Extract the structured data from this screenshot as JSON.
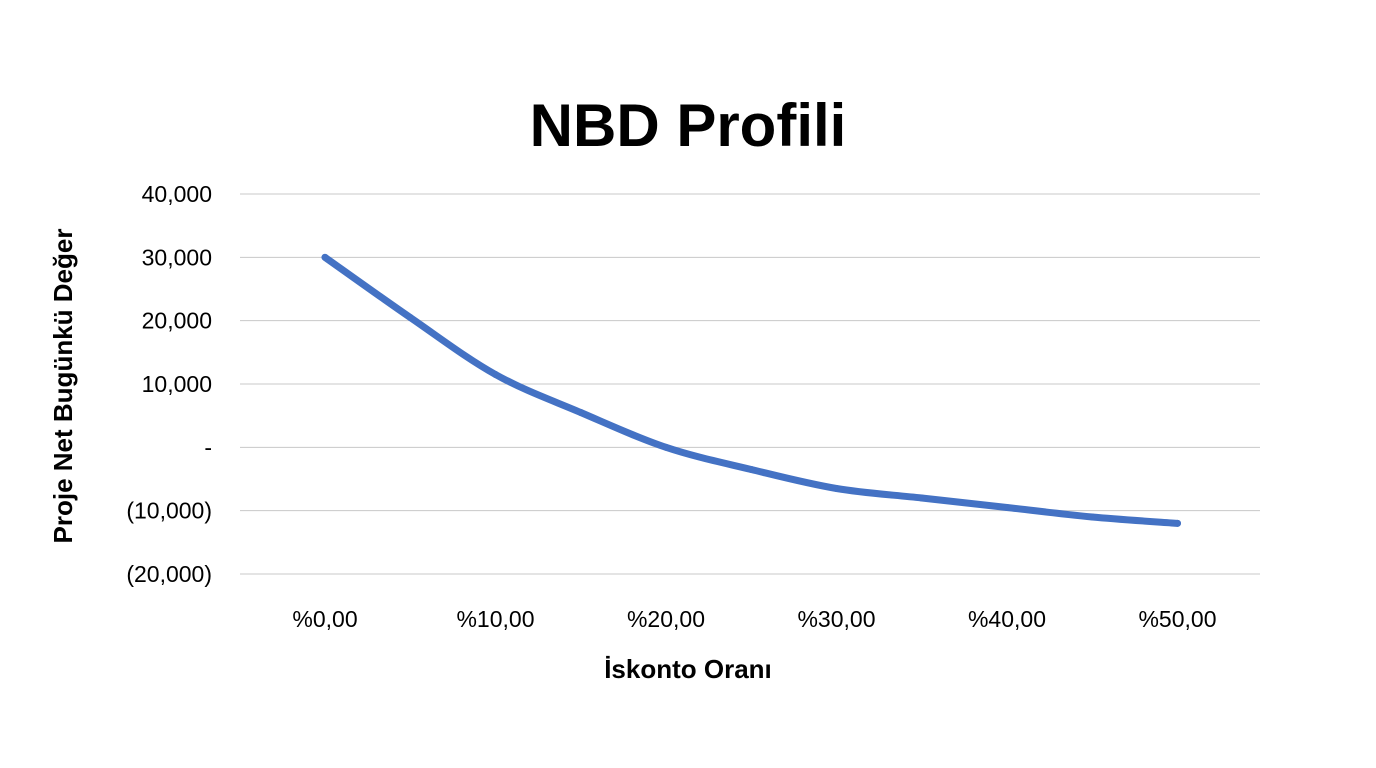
{
  "chart_data": {
    "type": "line",
    "title": "NBD Profili",
    "xlabel": "İskonto Oranı",
    "ylabel": "Proje Net Bugünkü Değer",
    "x": [
      0,
      5,
      10,
      15,
      20,
      25,
      30,
      35,
      40,
      45,
      50
    ],
    "x_tick_values": [
      0,
      10,
      20,
      30,
      40,
      50
    ],
    "x_tick_labels": [
      "%0,00",
      "%10,00",
      "%20,00",
      "%30,00",
      "%40,00",
      "%50,00"
    ],
    "y_tick_values": [
      40000,
      30000,
      20000,
      10000,
      0,
      -10000,
      -20000
    ],
    "y_tick_labels": [
      "40,000",
      "30,000",
      "20,000",
      "10,000",
      "-",
      "(10,000)",
      "(20,000)"
    ],
    "ylim": [
      -20000,
      40000
    ],
    "grid": true,
    "series": [
      {
        "values": [
          30000,
          20500,
          11500,
          5500,
          0,
          -3500,
          -6500,
          -8000,
          -9500,
          -11000,
          -12000
        ],
        "color": "#4472c4"
      }
    ]
  }
}
